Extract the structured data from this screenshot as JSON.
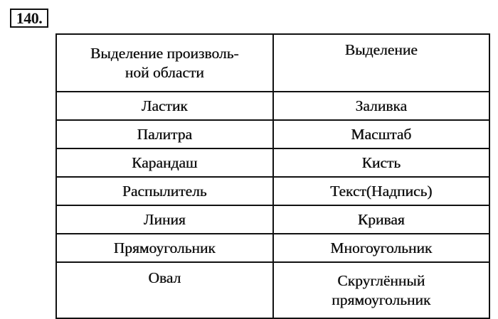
{
  "exercise_number": "140.",
  "table": {
    "rows": [
      [
        "Выделение произволь-ной области",
        "Выделение"
      ],
      [
        "Ластик",
        "Заливка"
      ],
      [
        "Палитра",
        "Масштаб"
      ],
      [
        "Карандаш",
        "Кисть"
      ],
      [
        "Распылитель",
        "Текст(Надпись)"
      ],
      [
        "Линия",
        "Кривая"
      ],
      [
        "Прямоугольник",
        "Многоугольник"
      ],
      [
        "Овал",
        "Скруглённый прямоугольник"
      ]
    ]
  },
  "header_left_lines": [
    "Выделение произволь-",
    "ной области"
  ],
  "last_right_lines": [
    "Скруглённый",
    "прямоугольник"
  ]
}
